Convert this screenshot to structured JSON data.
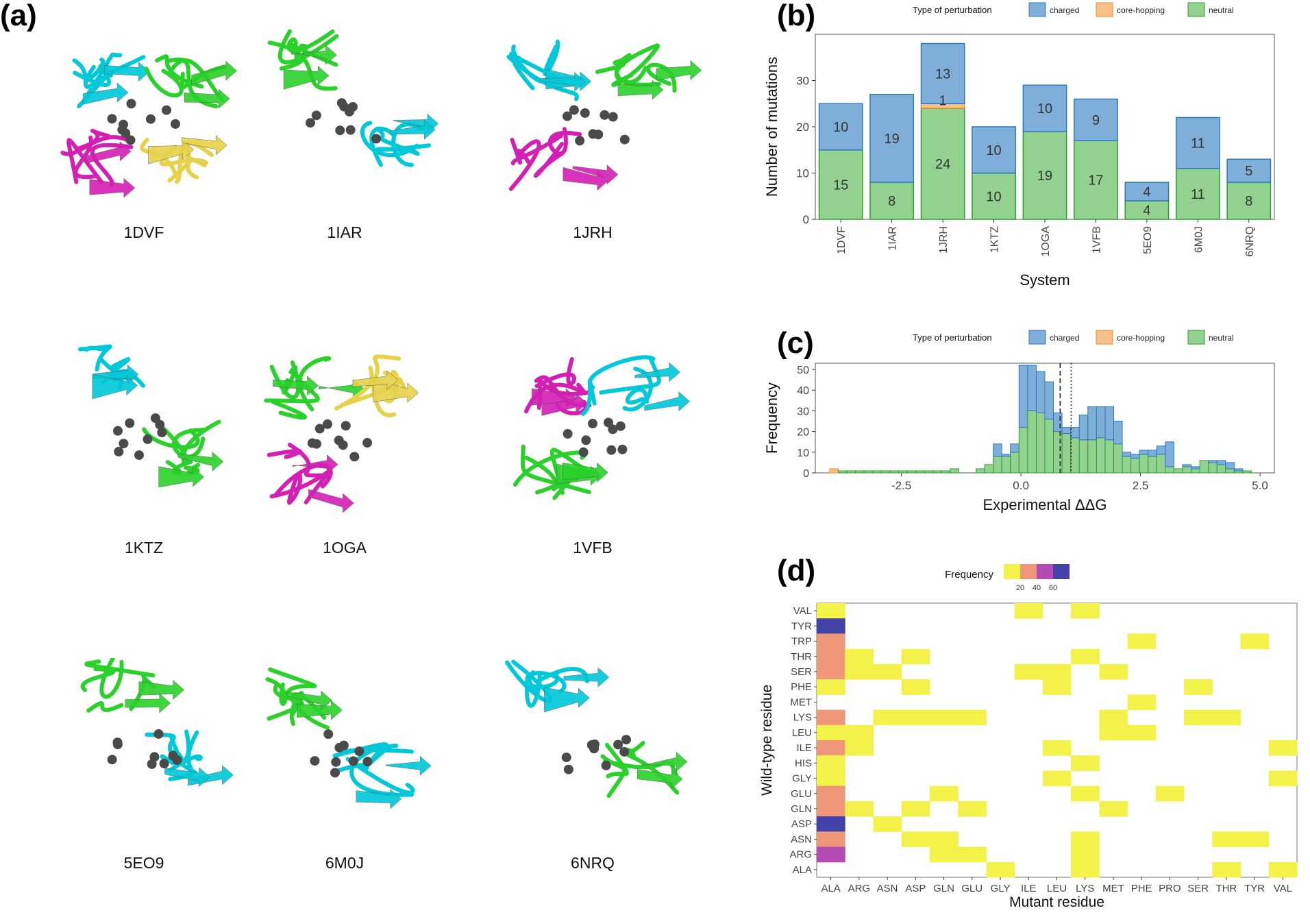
{
  "panels": {
    "a": "(a)",
    "b": "(b)",
    "c": "(c)",
    "d": "(d)"
  },
  "structures": [
    {
      "name": "1DVF",
      "chains": [
        "#00c8d8",
        "#2ad12a",
        "#d41fb4",
        "#e6d24a"
      ]
    },
    {
      "name": "1IAR",
      "chains": [
        "#2ad12a",
        "#00c8d8"
      ]
    },
    {
      "name": "1JRH",
      "chains": [
        "#00c8d8",
        "#2ad12a",
        "#d41fb4"
      ]
    },
    {
      "name": "1KTZ",
      "chains": [
        "#00c8d8",
        "#2ad12a"
      ]
    },
    {
      "name": "1OGA",
      "chains": [
        "#2ad12a",
        "#e6d24a",
        "#d41fb4"
      ]
    },
    {
      "name": "1VFB",
      "chains": [
        "#d41fb4",
        "#00c8d8",
        "#2ad12a"
      ]
    },
    {
      "name": "5EO9",
      "chains": [
        "#2ad12a",
        "#00c8d8"
      ]
    },
    {
      "name": "6M0J",
      "chains": [
        "#2ad12a",
        "#00c8d8"
      ]
    },
    {
      "name": "6NRQ",
      "chains": [
        "#00c8d8",
        "#2ad12a"
      ]
    }
  ],
  "colors": {
    "charged": "#7fafd9",
    "charged_edge": "#2b79c2",
    "core": "#f9c08a",
    "core_edge": "#f08a24",
    "neutral": "#93d190",
    "neutral_edge": "#2aa02a"
  },
  "chart_data": [
    {
      "type": "bar",
      "title": "",
      "legend_title": "Type of perturbation",
      "legend": [
        "charged",
        "core-hopping",
        "neutral"
      ],
      "xlabel": "System",
      "ylabel": "Number of mutations",
      "categories": [
        "1DVF",
        "1IAR",
        "1JRH",
        "1KTZ",
        "1OGA",
        "1VFB",
        "5EO9",
        "6M0J",
        "6NRQ"
      ],
      "series": [
        {
          "name": "neutral",
          "values": [
            15,
            8,
            24,
            10,
            19,
            17,
            4,
            11,
            8
          ]
        },
        {
          "name": "core-hopping",
          "values": [
            0,
            0,
            1,
            0,
            0,
            0,
            0,
            0,
            0
          ]
        },
        {
          "name": "charged",
          "values": [
            10,
            19,
            13,
            10,
            10,
            9,
            4,
            11,
            5
          ]
        }
      ],
      "labels": {
        "neutral": [
          "15",
          "8",
          "24",
          "10",
          "19",
          "17",
          "4",
          "11",
          "8"
        ],
        "core-hopping": [
          "",
          "",
          "1",
          "",
          "",
          "",
          "",
          "",
          ""
        ],
        "charged": [
          "10",
          "19",
          "13",
          "10",
          "10",
          "9",
          "4",
          "11",
          "5"
        ]
      },
      "ylim": [
        0,
        40
      ],
      "yticks": [
        "0",
        "10",
        "20",
        "30"
      ]
    },
    {
      "type": "bar",
      "title": "",
      "legend_title": "Type of perturbation",
      "legend": [
        "charged",
        "core-hopping",
        "neutral"
      ],
      "xlabel": "Experimental ΔΔG",
      "ylabel": "Frequency",
      "bins_start": -4.0,
      "bin_width": 0.18,
      "neutral": [
        0,
        1,
        1,
        1,
        1,
        1,
        1,
        1,
        1,
        1,
        1,
        1,
        1,
        1,
        2,
        0,
        0,
        2,
        4,
        8,
        8,
        10,
        22,
        30,
        29,
        26,
        20,
        19,
        17,
        16,
        16,
        17,
        16,
        14,
        8,
        7,
        9,
        8,
        9,
        3,
        2,
        3,
        2,
        6,
        5,
        4,
        2,
        1,
        1
      ],
      "charged": [
        0,
        0,
        0,
        0,
        0,
        0,
        0,
        0,
        0,
        0,
        0,
        0,
        0,
        0,
        0,
        0,
        0,
        0,
        0,
        6,
        1,
        4,
        30,
        22,
        20,
        18,
        9,
        3,
        5,
        12,
        16,
        15,
        16,
        11,
        2,
        2,
        2,
        3,
        4,
        12,
        0,
        1,
        1,
        0,
        1,
        2,
        3,
        1,
        0
      ],
      "core_hopping": [
        2,
        0,
        0,
        0,
        0,
        0,
        0,
        0,
        0,
        0,
        0,
        0,
        0,
        0,
        0,
        0,
        0,
        0,
        0,
        0,
        0,
        0,
        0,
        0,
        0,
        0,
        0,
        0,
        0,
        0,
        0,
        0,
        0,
        0,
        0,
        0,
        0,
        0,
        0,
        0,
        0,
        0,
        0,
        0,
        0,
        0,
        0,
        0,
        0
      ],
      "xlim": [
        -4.3,
        5.3
      ],
      "ylim": [
        0,
        53
      ],
      "xticks": [
        {
          "v": -2.5,
          "label": "-2.5"
        },
        {
          "v": 0,
          "label": "0.0"
        },
        {
          "v": 2.5,
          "label": "2.5"
        },
        {
          "v": 5,
          "label": "5.0"
        }
      ],
      "yticks": [
        "0",
        "10",
        "20",
        "30",
        "40",
        "50"
      ],
      "vline_dashed": 0.82,
      "vline_dotted": 1.05
    },
    {
      "type": "heatmap",
      "title": "",
      "xlabel": "Mutant residue",
      "ylabel": "Wild-type residue",
      "legend_title": "Frequency",
      "legend_ticks": [
        "20",
        "40",
        "60"
      ],
      "x": [
        "ALA",
        "ARG",
        "ASN",
        "ASP",
        "GLN",
        "GLU",
        "GLY",
        "ILE",
        "LEU",
        "LYS",
        "MET",
        "PHE",
        "PRO",
        "SER",
        "THR",
        "TYR",
        "VAL"
      ],
      "y": [
        "VAL",
        "TYR",
        "TRP",
        "THR",
        "SER",
        "PHE",
        "MET",
        "LYS",
        "LEU",
        "ILE",
        "HIS",
        "GLY",
        "GLU",
        "GLN",
        "ASP",
        "ASN",
        "ARG",
        "ALA"
      ],
      "cells": [
        [
          0,
          0,
          10
        ],
        [
          0,
          7,
          10
        ],
        [
          0,
          9,
          10
        ],
        [
          1,
          0,
          70
        ],
        [
          2,
          0,
          35
        ],
        [
          2,
          11,
          10
        ],
        [
          2,
          15,
          10
        ],
        [
          3,
          0,
          35
        ],
        [
          3,
          1,
          10
        ],
        [
          3,
          3,
          10
        ],
        [
          3,
          9,
          10
        ],
        [
          4,
          0,
          35
        ],
        [
          4,
          1,
          10
        ],
        [
          4,
          2,
          10
        ],
        [
          4,
          7,
          10
        ],
        [
          4,
          8,
          10
        ],
        [
          4,
          10,
          10
        ],
        [
          5,
          0,
          10
        ],
        [
          5,
          3,
          10
        ],
        [
          5,
          8,
          10
        ],
        [
          5,
          13,
          10
        ],
        [
          6,
          11,
          10
        ],
        [
          7,
          0,
          35
        ],
        [
          7,
          2,
          10
        ],
        [
          7,
          3,
          10
        ],
        [
          7,
          4,
          10
        ],
        [
          7,
          5,
          10
        ],
        [
          7,
          10,
          10
        ],
        [
          7,
          13,
          10
        ],
        [
          7,
          14,
          10
        ],
        [
          8,
          0,
          10
        ],
        [
          8,
          1,
          10
        ],
        [
          8,
          10,
          10
        ],
        [
          8,
          11,
          10
        ],
        [
          9,
          0,
          35
        ],
        [
          9,
          1,
          10
        ],
        [
          9,
          8,
          10
        ],
        [
          9,
          16,
          10
        ],
        [
          10,
          0,
          10
        ],
        [
          10,
          9,
          10
        ],
        [
          11,
          0,
          10
        ],
        [
          11,
          8,
          10
        ],
        [
          11,
          16,
          10
        ],
        [
          12,
          0,
          35
        ],
        [
          12,
          4,
          10
        ],
        [
          12,
          9,
          10
        ],
        [
          12,
          12,
          10
        ],
        [
          13,
          0,
          35
        ],
        [
          13,
          1,
          10
        ],
        [
          13,
          3,
          10
        ],
        [
          13,
          5,
          10
        ],
        [
          13,
          10,
          10
        ],
        [
          14,
          0,
          70
        ],
        [
          14,
          2,
          10
        ],
        [
          15,
          0,
          35
        ],
        [
          15,
          3,
          10
        ],
        [
          15,
          4,
          10
        ],
        [
          15,
          9,
          10
        ],
        [
          15,
          14,
          10
        ],
        [
          15,
          15,
          10
        ],
        [
          16,
          0,
          52
        ],
        [
          16,
          4,
          10
        ],
        [
          16,
          5,
          10
        ],
        [
          16,
          9,
          10
        ],
        [
          17,
          6,
          10
        ],
        [
          17,
          9,
          10
        ],
        [
          17,
          14,
          10
        ],
        [
          17,
          16,
          10
        ]
      ]
    }
  ]
}
